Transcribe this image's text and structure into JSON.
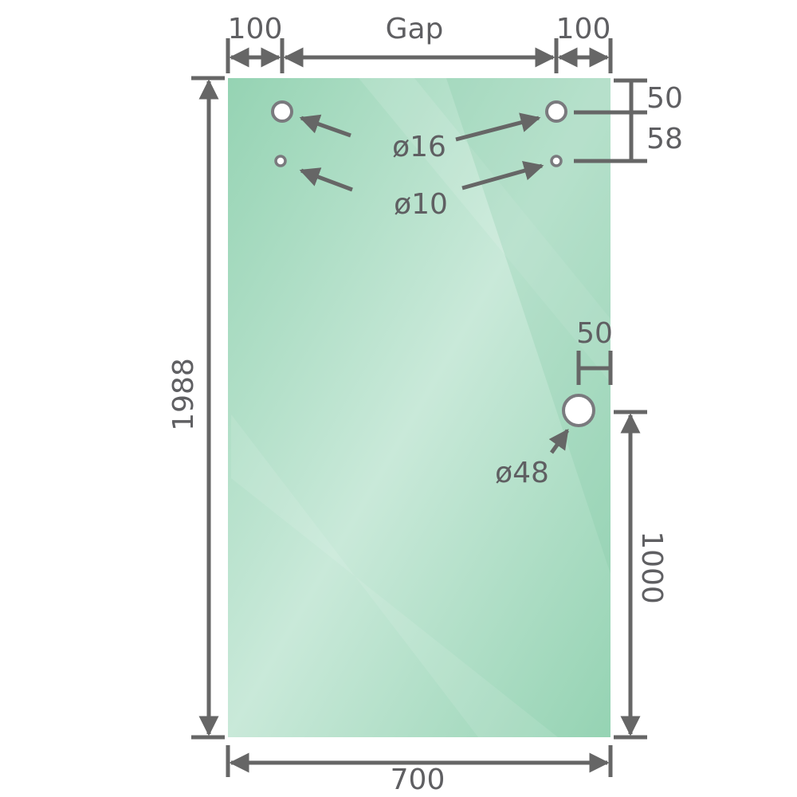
{
  "colors": {
    "glass_edge": "#95d3b3",
    "glass_center": "#c9e9d9",
    "dimension": "#666666",
    "hole_ring": "#7a7a7e"
  },
  "labels": {
    "left_offset": "100",
    "gap": "Gap",
    "right_offset": "100",
    "top_to_hole": "50",
    "hole_spacing": "58",
    "large_top_holes": "ø16",
    "small_top_holes": "ø10",
    "handle_edge_offset": "50",
    "handle_hole": "ø48",
    "height": "1988",
    "handle_height": "1000",
    "width": "700"
  }
}
